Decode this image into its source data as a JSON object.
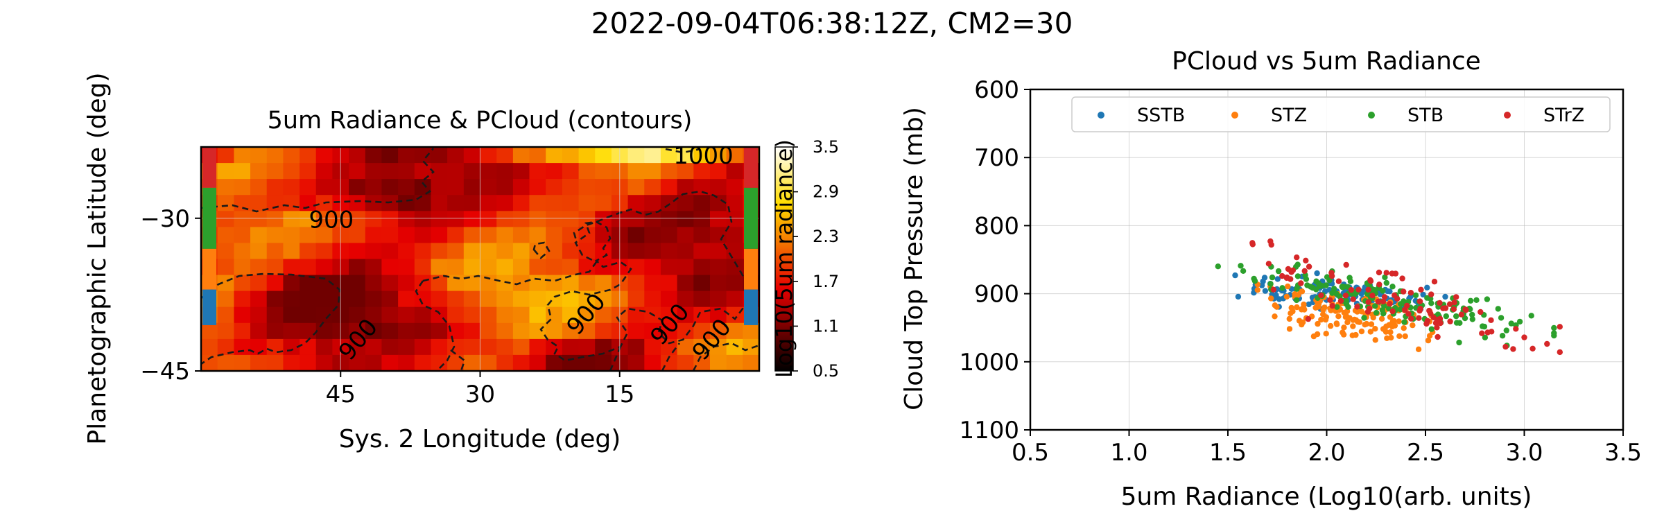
{
  "figure_title": "2022-09-04T06:38:12Z, CM2=30",
  "chart_data": [
    {
      "type": "heatmap",
      "title": "5um Radiance & PCloud (contours)",
      "xlabel": "Sys. 2 Longitude (deg)",
      "ylabel": "Planetographic Latitude (deg)",
      "xlim": [
        60,
        0
      ],
      "ylim": [
        -45,
        -23
      ],
      "x_inverted": true,
      "x_ticks": [
        45,
        30,
        15
      ],
      "y_ticks": [
        -30,
        -45
      ],
      "grid": true,
      "colorscale": "hot",
      "colorbar": {
        "label": "Log10(5um radiance)",
        "range": [
          0.5,
          3.5
        ],
        "ticks": [
          "3.5",
          "2.9",
          "2.3",
          "1.7",
          "1.1",
          "0.5"
        ]
      },
      "contour_labels": [
        {
          "text": "1000",
          "lon": 6,
          "lat": -24
        },
        {
          "text": "900",
          "lon": 46,
          "lat": -30.3
        },
        {
          "text": "900",
          "lon": 43,
          "lat": -42
        },
        {
          "text": "900",
          "lon": 18.5,
          "lat": -39.5
        },
        {
          "text": "900",
          "lon": 9.5,
          "lat": -40.5
        },
        {
          "text": "900",
          "lon": 5,
          "lat": -42
        }
      ],
      "band_markers": [
        {
          "name": "SSTB",
          "color": "#1f77b4",
          "lat_range": [
            -40.5,
            -37
          ]
        },
        {
          "name": "STZ",
          "color": "#ff7f0e",
          "lat_range": [
            -37,
            -33
          ]
        },
        {
          "name": "STB",
          "color": "#2ca02c",
          "lat_range": [
            -33,
            -27
          ]
        },
        {
          "name": "STrZ",
          "color": "#d62728",
          "lat_range": [
            -27,
            -23
          ]
        }
      ]
    },
    {
      "type": "scatter",
      "title": "PCloud vs 5um Radiance",
      "xlabel": "5um Radiance (Log10(arb. units)",
      "ylabel": "Cloud Top Pressure (mb)",
      "xlim": [
        0.5,
        3.5
      ],
      "ylim": [
        1100,
        600
      ],
      "y_inverted": true,
      "x_ticks": [
        "0.5",
        "1.0",
        "1.5",
        "2.0",
        "2.5",
        "3.0",
        "3.5"
      ],
      "y_ticks": [
        "600",
        "700",
        "800",
        "900",
        "1000",
        "1100"
      ],
      "grid": true,
      "legend_position": "top",
      "series": [
        {
          "name": "SSTB",
          "color": "#1f77b4",
          "count": 110,
          "x_range": [
            1.5,
            2.6
          ],
          "p_at_x1": 895,
          "p_at_x2": 905,
          "spread": 10
        },
        {
          "name": "STZ",
          "color": "#ff7f0e",
          "count": 150,
          "x_range": [
            1.65,
            2.55
          ],
          "p_at_x1": 910,
          "p_at_x2": 955,
          "spread": 16
        },
        {
          "name": "STB",
          "color": "#2ca02c",
          "count": 160,
          "x_range": [
            1.45,
            3.15
          ],
          "p_at_x1": 862,
          "p_at_x2": 955,
          "spread": 14
        },
        {
          "name": "STrZ",
          "color": "#d62728",
          "count": 100,
          "x_range": [
            1.42,
            3.18
          ],
          "p_at_x1": 840,
          "p_at_x2": 985,
          "spread": 22
        }
      ]
    }
  ]
}
